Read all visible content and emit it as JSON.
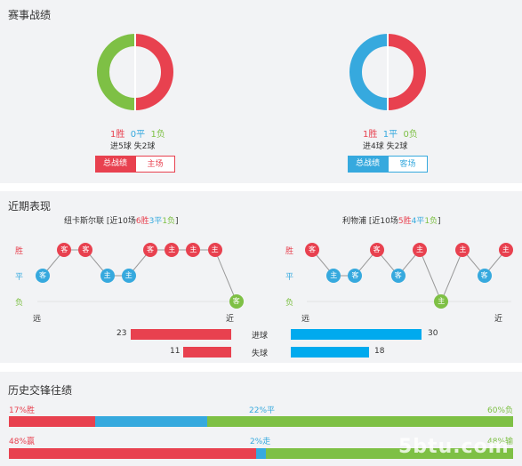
{
  "colors": {
    "win": "#e8414f",
    "draw": "#36a9de",
    "loss": "#7ec045",
    "home_bar": "#e8414f",
    "away_bar": "#00aaee"
  },
  "record": {
    "title": "赛事战绩",
    "home": {
      "win": "1胜",
      "draw": "0平",
      "loss": "1负",
      "win_n": 1,
      "draw_n": 0,
      "loss_n": 1,
      "goals": "进5球  失2球",
      "btn_total": "总战绩",
      "btn_venue": "主场"
    },
    "away": {
      "win": "1胜",
      "draw": "1平",
      "loss": "0负",
      "win_n": 1,
      "draw_n": 1,
      "loss_n": 0,
      "goals": "进4球  失2球",
      "btn_total": "总战绩",
      "btn_venue": "客场"
    }
  },
  "recent": {
    "title": "近期表现",
    "y_labels": {
      "win": "胜",
      "draw": "平",
      "loss": "负"
    },
    "x_labels": {
      "far": "远",
      "near": "近"
    },
    "home": {
      "team": "纽卡斯尔联",
      "pre": " [近10场",
      "win": "6胜",
      "draw": "3平",
      "loss": "1负",
      "post": "]",
      "results": [
        "平",
        "胜",
        "胜",
        "平",
        "平",
        "胜",
        "胜",
        "胜",
        "胜",
        "负"
      ],
      "venues": [
        "客",
        "客",
        "客",
        "主",
        "主",
        "客",
        "主",
        "主",
        "主",
        "客"
      ]
    },
    "away": {
      "team": "利物浦",
      "pre": " [近10场",
      "win": "5胜",
      "draw": "4平",
      "loss": "1负",
      "post": "]",
      "results": [
        "胜",
        "平",
        "平",
        "胜",
        "平",
        "胜",
        "负",
        "胜",
        "平",
        "胜"
      ],
      "venues": [
        "客",
        "主",
        "客",
        "客",
        "客",
        "主",
        "主",
        "主",
        "客",
        "主"
      ]
    },
    "stats": {
      "scored_label": "进球",
      "conceded_label": "失球",
      "home_scored": 23,
      "away_scored": 30,
      "home_conceded": 11,
      "away_conceded": 18
    }
  },
  "h2h": {
    "title": "历史交锋往绩",
    "row1": {
      "left": "17%胜",
      "mid": "22%平",
      "right": "60%负",
      "win": 17,
      "draw": 22,
      "loss": 60
    },
    "row2": {
      "left": "48%赢",
      "mid": "2%走",
      "right": "48%输",
      "win": 48,
      "draw": 2,
      "loss": 48
    }
  },
  "watermark": "5btu.com"
}
